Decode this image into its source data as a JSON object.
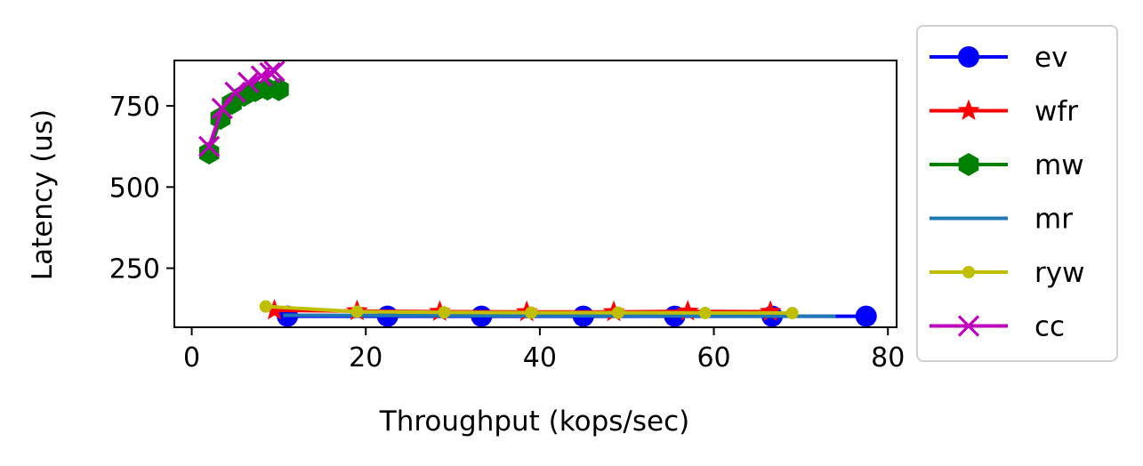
{
  "chart_data": {
    "type": "line",
    "xlabel": "Throughput (kops/sec)",
    "ylabel": "Latency (us)",
    "xlim": [
      -2,
      81
    ],
    "ylim": [
      68,
      890
    ],
    "xticks": [
      0,
      20,
      40,
      60,
      80
    ],
    "yticks": [
      250,
      500,
      750
    ],
    "legend_position": "outside-right",
    "series": [
      {
        "name": "ev",
        "color": "#0000ff",
        "marker": "circle",
        "x": [
          11,
          22.5,
          33.3,
          45,
          55.5,
          66.7,
          77.5
        ],
        "y": [
          102,
          102,
          102,
          102,
          102,
          102,
          102
        ]
      },
      {
        "name": "wfr",
        "color": "#ff0000",
        "marker": "star",
        "x": [
          9.5,
          19,
          28.5,
          38.5,
          48.5,
          57,
          66.5
        ],
        "y": [
          120,
          118,
          116,
          115,
          115,
          117,
          116
        ]
      },
      {
        "name": "mw",
        "color": "#008000",
        "marker": "hexagon",
        "x": [
          2,
          3.3,
          4.6,
          6,
          7.3,
          8.7,
          10
        ],
        "y": [
          605,
          712,
          758,
          783,
          797,
          802,
          800
        ]
      },
      {
        "name": "mr",
        "color": "#1f77b4",
        "marker": "none",
        "x": [
          10.5,
          74
        ],
        "y": [
          105,
          102
        ]
      },
      {
        "name": "ryw",
        "color": "#bfbf00",
        "marker": "point",
        "x": [
          8.5,
          19,
          29,
          39,
          49,
          59,
          69
        ],
        "y": [
          132,
          116,
          114,
          113,
          113,
          112,
          112
        ]
      },
      {
        "name": "cc",
        "color": "#bf00bf",
        "marker": "x",
        "x": [
          2,
          3.5,
          5,
          6.5,
          8,
          9,
          9.5
        ],
        "y": [
          625,
          742,
          792,
          822,
          842,
          852,
          857
        ]
      }
    ]
  }
}
